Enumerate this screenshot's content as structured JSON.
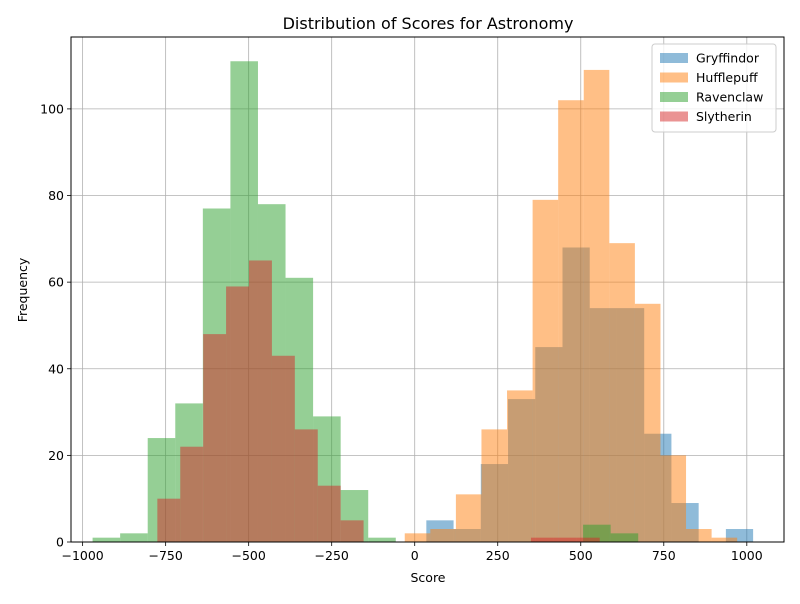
{
  "chart_data": {
    "type": "histogram",
    "title": "Distribution of Scores for Astronomy",
    "xlabel": "Score",
    "ylabel": "Frequency",
    "xlim": [
      -1035,
      1112
    ],
    "ylim": [
      0,
      116.6
    ],
    "xticks": [
      -1000,
      -750,
      -500,
      -250,
      0,
      250,
      500,
      750,
      1000
    ],
    "yticks": [
      0,
      20,
      40,
      60,
      80,
      100
    ],
    "grid": true,
    "legend_position": "top-right",
    "opacity": 0.5,
    "series": [
      {
        "name": "Gryffindor",
        "color": "#1f77b4",
        "bins": [
          {
            "x0": 35,
            "x1": 117,
            "count": 5
          },
          {
            "x0": 117,
            "x1": 199,
            "count": 3
          },
          {
            "x0": 199,
            "x1": 281,
            "count": 18
          },
          {
            "x0": 281,
            "x1": 363,
            "count": 33
          },
          {
            "x0": 363,
            "x1": 445,
            "count": 45
          },
          {
            "x0": 445,
            "x1": 527,
            "count": 68
          },
          {
            "x0": 527,
            "x1": 609,
            "count": 54
          },
          {
            "x0": 609,
            "x1": 691,
            "count": 54
          },
          {
            "x0": 691,
            "x1": 773,
            "count": 25
          },
          {
            "x0": 773,
            "x1": 855,
            "count": 9
          },
          {
            "x0": 855,
            "x1": 937,
            "count": 0
          },
          {
            "x0": 937,
            "x1": 1019,
            "count": 3
          }
        ]
      },
      {
        "name": "Hufflepuff",
        "color": "#ff7f0e",
        "bins": [
          {
            "x0": -30,
            "x1": 47,
            "count": 2
          },
          {
            "x0": 47,
            "x1": 124,
            "count": 3
          },
          {
            "x0": 124,
            "x1": 201,
            "count": 11
          },
          {
            "x0": 201,
            "x1": 278,
            "count": 26
          },
          {
            "x0": 278,
            "x1": 355,
            "count": 35
          },
          {
            "x0": 355,
            "x1": 432,
            "count": 79
          },
          {
            "x0": 432,
            "x1": 509,
            "count": 102
          },
          {
            "x0": 509,
            "x1": 586,
            "count": 109
          },
          {
            "x0": 586,
            "x1": 663,
            "count": 69
          },
          {
            "x0": 663,
            "x1": 740,
            "count": 55
          },
          {
            "x0": 740,
            "x1": 817,
            "count": 20
          },
          {
            "x0": 817,
            "x1": 894,
            "count": 3
          },
          {
            "x0": 894,
            "x1": 971,
            "count": 1
          }
        ]
      },
      {
        "name": "Ravenclaw",
        "color": "#2ca02c",
        "bins": [
          {
            "x0": -970,
            "x1": -887,
            "count": 1
          },
          {
            "x0": -887,
            "x1": -804,
            "count": 2
          },
          {
            "x0": -804,
            "x1": -721,
            "count": 24
          },
          {
            "x0": -721,
            "x1": -638,
            "count": 32
          },
          {
            "x0": -638,
            "x1": -555,
            "count": 77
          },
          {
            "x0": -555,
            "x1": -472,
            "count": 111
          },
          {
            "x0": -472,
            "x1": -389,
            "count": 78
          },
          {
            "x0": -389,
            "x1": -306,
            "count": 61
          },
          {
            "x0": -306,
            "x1": -223,
            "count": 29
          },
          {
            "x0": -223,
            "x1": -140,
            "count": 12
          },
          {
            "x0": -140,
            "x1": -57,
            "count": 1
          },
          {
            "x0": 507,
            "x1": 590,
            "count": 4
          },
          {
            "x0": 590,
            "x1": 673,
            "count": 2
          }
        ]
      },
      {
        "name": "Slytherin",
        "color": "#d62728",
        "bins": [
          {
            "x0": -775,
            "x1": -706,
            "count": 10
          },
          {
            "x0": -706,
            "x1": -637,
            "count": 22
          },
          {
            "x0": -637,
            "x1": -568,
            "count": 48
          },
          {
            "x0": -568,
            "x1": -499,
            "count": 59
          },
          {
            "x0": -499,
            "x1": -430,
            "count": 65
          },
          {
            "x0": -430,
            "x1": -361,
            "count": 43
          },
          {
            "x0": -361,
            "x1": -292,
            "count": 26
          },
          {
            "x0": -292,
            "x1": -223,
            "count": 13
          },
          {
            "x0": -223,
            "x1": -154,
            "count": 5
          },
          {
            "x0": 350,
            "x1": 419,
            "count": 1
          },
          {
            "x0": 419,
            "x1": 488,
            "count": 1
          },
          {
            "x0": 488,
            "x1": 557,
            "count": 1
          }
        ]
      }
    ]
  }
}
